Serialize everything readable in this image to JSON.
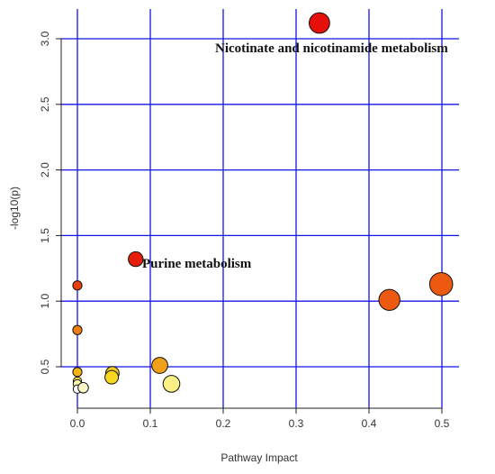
{
  "chart_data": {
    "type": "scatter",
    "title": "",
    "xlabel": "Pathway Impact",
    "ylabel": "-log10(p)",
    "xlim": [
      -0.005,
      0.52
    ],
    "ylim": [
      0.22,
      3.22
    ],
    "x_ticks": [
      {
        "value": 0.0,
        "label": "0.0"
      },
      {
        "value": 0.1,
        "label": "0.1"
      },
      {
        "value": 0.2,
        "label": "0.2"
      },
      {
        "value": 0.3,
        "label": "0.3"
      },
      {
        "value": 0.4,
        "label": "0.4"
      },
      {
        "value": 0.5,
        "label": "0.5"
      }
    ],
    "y_ticks": [
      {
        "value": 0.5,
        "label": "0.5"
      },
      {
        "value": 1.0,
        "label": "1.0"
      },
      {
        "value": 1.5,
        "label": "1.5"
      },
      {
        "value": 2.0,
        "label": "2.0"
      },
      {
        "value": 2.5,
        "label": "2.5"
      },
      {
        "value": 3.0,
        "label": "3.0"
      }
    ],
    "grid": true,
    "grid_color": "#1515e8",
    "points": [
      {
        "x": 0.0,
        "y": 1.12,
        "size": 0.15,
        "color": "#e8400a"
      },
      {
        "x": 0.0,
        "y": 0.78,
        "size": 0.15,
        "color": "#ef7d12"
      },
      {
        "x": 0.0,
        "y": 0.46,
        "size": 0.15,
        "color": "#f5b316"
      },
      {
        "x": 0.0,
        "y": 0.39,
        "size": 0.12,
        "color": "#fae84a"
      },
      {
        "x": 0.0,
        "y": 0.37,
        "size": 0.12,
        "color": "#fcf6a8"
      },
      {
        "x": 0.0,
        "y": 0.33,
        "size": 0.12,
        "color": "#ffffff"
      },
      {
        "x": 0.008,
        "y": 0.34,
        "size": 0.2,
        "color": "#fdf8c8"
      },
      {
        "x": 0.048,
        "y": 0.45,
        "size": 0.32,
        "color": "#f3cc1b"
      },
      {
        "x": 0.047,
        "y": 0.42,
        "size": 0.32,
        "color": "#f7d61e"
      },
      {
        "x": 0.113,
        "y": 0.51,
        "size": 0.42,
        "color": "#f0a019"
      },
      {
        "x": 0.129,
        "y": 0.37,
        "size": 0.45,
        "color": "#fbf085"
      },
      {
        "x": 0.08,
        "y": 1.32,
        "size": 0.37,
        "color": "#e71d0c"
      },
      {
        "x": 0.332,
        "y": 3.12,
        "size": 0.6,
        "color": "#e5100a"
      },
      {
        "x": 0.428,
        "y": 1.01,
        "size": 0.62,
        "color": "#ec5a0f"
      },
      {
        "x": 0.499,
        "y": 1.13,
        "size": 0.7,
        "color": "#ec5a0f"
      }
    ],
    "annotations": [
      {
        "text": "Nicotinate and nicotinamide metabolism",
        "x": 0.2,
        "y": 2.93
      },
      {
        "text": "Purine metabolism",
        "x": 0.1,
        "y": 1.29
      }
    ]
  }
}
